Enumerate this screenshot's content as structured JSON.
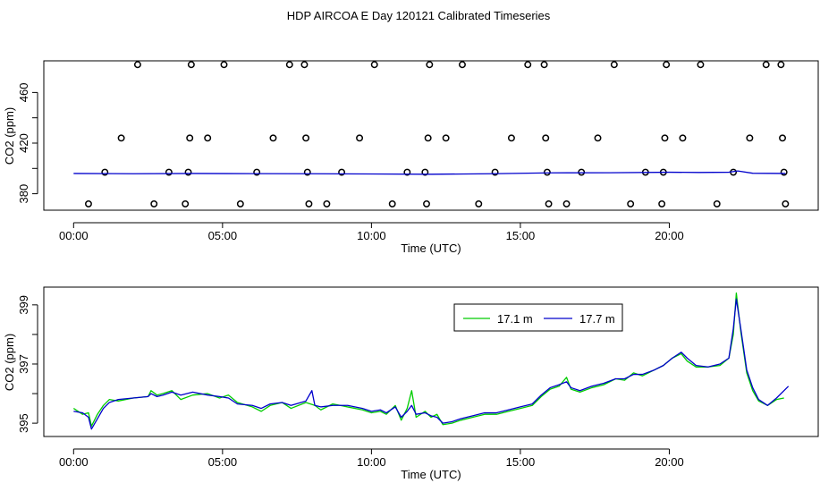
{
  "title": "HDP AIRCOA E  Day 120121  Calibrated Timeseries",
  "chart_data": [
    {
      "type": "scatter",
      "xlabel": "Time (UTC)",
      "ylabel": "CO2 (ppm)",
      "xlim": [
        -1,
        25
      ],
      "ylim": [
        367,
        485
      ],
      "xticks": [
        0,
        5,
        10,
        15,
        20
      ],
      "xtick_labels": [
        "00:00",
        "05:00",
        "10:00",
        "15:00",
        "20:00"
      ],
      "yticks": [
        380,
        420,
        460
      ],
      "ytick_labels": [
        "380",
        "420",
        "460"
      ],
      "grid": false,
      "points": [
        {
          "x": 0.5,
          "y": 372
        },
        {
          "x": 1.05,
          "y": 397
        },
        {
          "x": 1.6,
          "y": 424
        },
        {
          "x": 2.15,
          "y": 482
        },
        {
          "x": 2.7,
          "y": 372
        },
        {
          "x": 3.2,
          "y": 397
        },
        {
          "x": 3.75,
          "y": 372
        },
        {
          "x": 3.85,
          "y": 397
        },
        {
          "x": 3.9,
          "y": 424
        },
        {
          "x": 3.95,
          "y": 482
        },
        {
          "x": 4.5,
          "y": 424
        },
        {
          "x": 5.05,
          "y": 482
        },
        {
          "x": 5.6,
          "y": 372
        },
        {
          "x": 6.15,
          "y": 397
        },
        {
          "x": 6.7,
          "y": 424
        },
        {
          "x": 7.25,
          "y": 482
        },
        {
          "x": 7.75,
          "y": 482
        },
        {
          "x": 7.8,
          "y": 424
        },
        {
          "x": 7.85,
          "y": 397
        },
        {
          "x": 7.9,
          "y": 372
        },
        {
          "x": 8.5,
          "y": 372
        },
        {
          "x": 9.0,
          "y": 397
        },
        {
          "x": 9.6,
          "y": 424
        },
        {
          "x": 10.1,
          "y": 482
        },
        {
          "x": 10.7,
          "y": 372
        },
        {
          "x": 11.2,
          "y": 397
        },
        {
          "x": 11.8,
          "y": 397
        },
        {
          "x": 11.85,
          "y": 372
        },
        {
          "x": 11.9,
          "y": 424
        },
        {
          "x": 11.95,
          "y": 482
        },
        {
          "x": 12.5,
          "y": 424
        },
        {
          "x": 13.05,
          "y": 482
        },
        {
          "x": 13.6,
          "y": 372
        },
        {
          "x": 14.15,
          "y": 397
        },
        {
          "x": 14.7,
          "y": 424
        },
        {
          "x": 15.25,
          "y": 482
        },
        {
          "x": 15.8,
          "y": 482
        },
        {
          "x": 15.85,
          "y": 424
        },
        {
          "x": 15.9,
          "y": 397
        },
        {
          "x": 15.95,
          "y": 372
        },
        {
          "x": 16.55,
          "y": 372
        },
        {
          "x": 17.05,
          "y": 397
        },
        {
          "x": 17.6,
          "y": 424
        },
        {
          "x": 18.15,
          "y": 482
        },
        {
          "x": 18.7,
          "y": 372
        },
        {
          "x": 19.2,
          "y": 397
        },
        {
          "x": 19.75,
          "y": 372
        },
        {
          "x": 19.8,
          "y": 397
        },
        {
          "x": 19.85,
          "y": 424
        },
        {
          "x": 19.9,
          "y": 482
        },
        {
          "x": 20.45,
          "y": 424
        },
        {
          "x": 21.05,
          "y": 482
        },
        {
          "x": 21.6,
          "y": 372
        },
        {
          "x": 22.15,
          "y": 397
        },
        {
          "x": 22.7,
          "y": 424
        },
        {
          "x": 23.25,
          "y": 482
        },
        {
          "x": 23.75,
          "y": 482
        },
        {
          "x": 23.8,
          "y": 424
        },
        {
          "x": 23.85,
          "y": 397
        },
        {
          "x": 23.9,
          "y": 372
        }
      ],
      "series": [
        {
          "color": "#0000cc",
          "points": [
            [
              0,
              396
            ],
            [
              2,
              395.8
            ],
            [
              4,
              396
            ],
            [
              6,
              395.9
            ],
            [
              8,
              395.8
            ],
            [
              10,
              395.6
            ],
            [
              12,
              395.4
            ],
            [
              14,
              395.8
            ],
            [
              16,
              396.5
            ],
            [
              18,
              396.6
            ],
            [
              20,
              397
            ],
            [
              21,
              396.8
            ],
            [
              22,
              397
            ],
            [
              22.3,
              398
            ],
            [
              22.8,
              396.2
            ],
            [
              23.9,
              396
            ]
          ]
        }
      ]
    },
    {
      "type": "line",
      "xlabel": "Time (UTC)",
      "ylabel": "CO2 (ppm)",
      "xlim": [
        -1,
        25
      ],
      "ylim": [
        394.55,
        399.6
      ],
      "xticks": [
        0,
        5,
        10,
        15,
        20
      ],
      "xtick_labels": [
        "00:00",
        "05:00",
        "10:00",
        "15:00",
        "20:00"
      ],
      "yticks": [
        395,
        397,
        399
      ],
      "ytick_labels": [
        "395",
        "397",
        "399"
      ],
      "grid": false,
      "legend": "top-center",
      "series": [
        {
          "name": "17.1 m",
          "color": "#00cc00",
          "points": [
            [
              0,
              395.5
            ],
            [
              0.3,
              395.3
            ],
            [
              0.5,
              395.35
            ],
            [
              0.6,
              394.9
            ],
            [
              0.8,
              395.3
            ],
            [
              1.0,
              395.6
            ],
            [
              1.2,
              395.8
            ],
            [
              1.5,
              395.75
            ],
            [
              2.0,
              395.85
            ],
            [
              2.5,
              395.9
            ],
            [
              2.6,
              396.1
            ],
            [
              2.8,
              395.95
            ],
            [
              3.0,
              396.0
            ],
            [
              3.3,
              396.1
            ],
            [
              3.6,
              395.8
            ],
            [
              4.0,
              395.95
            ],
            [
              4.5,
              396.0
            ],
            [
              4.9,
              395.85
            ],
            [
              5.2,
              395.95
            ],
            [
              5.5,
              395.7
            ],
            [
              6.0,
              395.55
            ],
            [
              6.3,
              395.4
            ],
            [
              6.6,
              395.6
            ],
            [
              7.0,
              395.7
            ],
            [
              7.3,
              395.5
            ],
            [
              7.8,
              395.7
            ],
            [
              8.1,
              395.6
            ],
            [
              8.3,
              395.45
            ],
            [
              8.7,
              395.65
            ],
            [
              9.2,
              395.55
            ],
            [
              9.7,
              395.45
            ],
            [
              10.0,
              395.35
            ],
            [
              10.3,
              395.4
            ],
            [
              10.5,
              395.3
            ],
            [
              10.8,
              395.6
            ],
            [
              11.0,
              395.1
            ],
            [
              11.2,
              395.5
            ],
            [
              11.35,
              396.1
            ],
            [
              11.5,
              395.2
            ],
            [
              11.8,
              395.4
            ],
            [
              12.0,
              395.2
            ],
            [
              12.2,
              395.3
            ],
            [
              12.4,
              394.95
            ],
            [
              12.7,
              395.0
            ],
            [
              13.0,
              395.1
            ],
            [
              13.4,
              395.2
            ],
            [
              13.8,
              395.3
            ],
            [
              14.2,
              395.3
            ],
            [
              14.6,
              395.4
            ],
            [
              15.0,
              395.5
            ],
            [
              15.4,
              395.6
            ],
            [
              15.7,
              395.9
            ],
            [
              16.0,
              396.15
            ],
            [
              16.3,
              396.25
            ],
            [
              16.55,
              396.55
            ],
            [
              16.7,
              396.15
            ],
            [
              17.0,
              396.05
            ],
            [
              17.4,
              396.2
            ],
            [
              17.8,
              396.3
            ],
            [
              18.2,
              396.5
            ],
            [
              18.5,
              396.45
            ],
            [
              18.8,
              396.7
            ],
            [
              19.1,
              396.6
            ],
            [
              19.5,
              396.8
            ],
            [
              19.8,
              396.95
            ],
            [
              20.1,
              397.2
            ],
            [
              20.4,
              397.35
            ],
            [
              20.6,
              397.1
            ],
            [
              20.9,
              396.9
            ],
            [
              21.3,
              396.9
            ],
            [
              21.7,
              396.95
            ],
            [
              22.0,
              397.2
            ],
            [
              22.15,
              398.0
            ],
            [
              22.25,
              399.4
            ],
            [
              22.4,
              398.1
            ],
            [
              22.6,
              396.7
            ],
            [
              22.8,
              396.1
            ],
            [
              23.0,
              395.75
            ],
            [
              23.3,
              395.6
            ],
            [
              23.6,
              395.8
            ],
            [
              23.85,
              395.85
            ]
          ]
        },
        {
          "name": "17.7 m",
          "color": "#0000cc",
          "points": [
            [
              0,
              395.4
            ],
            [
              0.3,
              395.35
            ],
            [
              0.5,
              395.2
            ],
            [
              0.6,
              394.8
            ],
            [
              0.8,
              395.15
            ],
            [
              1.0,
              395.5
            ],
            [
              1.2,
              395.7
            ],
            [
              1.5,
              395.8
            ],
            [
              2.0,
              395.85
            ],
            [
              2.5,
              395.9
            ],
            [
              2.6,
              396.0
            ],
            [
              2.8,
              395.9
            ],
            [
              3.0,
              395.95
            ],
            [
              3.3,
              396.05
            ],
            [
              3.6,
              395.95
            ],
            [
              4.0,
              396.05
            ],
            [
              4.5,
              395.95
            ],
            [
              4.9,
              395.9
            ],
            [
              5.2,
              395.85
            ],
            [
              5.5,
              395.65
            ],
            [
              6.0,
              395.6
            ],
            [
              6.3,
              395.5
            ],
            [
              6.6,
              395.65
            ],
            [
              7.0,
              395.7
            ],
            [
              7.3,
              395.6
            ],
            [
              7.8,
              395.75
            ],
            [
              8.0,
              396.1
            ],
            [
              8.1,
              395.6
            ],
            [
              8.3,
              395.55
            ],
            [
              8.7,
              395.6
            ],
            [
              9.2,
              395.6
            ],
            [
              9.7,
              395.5
            ],
            [
              10.0,
              395.4
            ],
            [
              10.3,
              395.45
            ],
            [
              10.5,
              395.35
            ],
            [
              10.8,
              395.55
            ],
            [
              11.0,
              395.2
            ],
            [
              11.2,
              395.4
            ],
            [
              11.35,
              395.6
            ],
            [
              11.5,
              395.3
            ],
            [
              11.8,
              395.35
            ],
            [
              12.0,
              395.25
            ],
            [
              12.2,
              395.2
            ],
            [
              12.4,
              395.0
            ],
            [
              12.7,
              395.05
            ],
            [
              13.0,
              395.15
            ],
            [
              13.4,
              395.25
            ],
            [
              13.8,
              395.35
            ],
            [
              14.2,
              395.35
            ],
            [
              14.6,
              395.45
            ],
            [
              15.0,
              395.55
            ],
            [
              15.4,
              395.65
            ],
            [
              15.7,
              395.95
            ],
            [
              16.0,
              396.2
            ],
            [
              16.3,
              396.3
            ],
            [
              16.55,
              396.4
            ],
            [
              16.7,
              396.2
            ],
            [
              17.0,
              396.1
            ],
            [
              17.4,
              396.25
            ],
            [
              17.8,
              396.35
            ],
            [
              18.2,
              396.5
            ],
            [
              18.5,
              396.5
            ],
            [
              18.8,
              396.65
            ],
            [
              19.1,
              396.65
            ],
            [
              19.5,
              396.8
            ],
            [
              19.8,
              396.95
            ],
            [
              20.1,
              397.2
            ],
            [
              20.4,
              397.4
            ],
            [
              20.6,
              397.2
            ],
            [
              20.9,
              396.95
            ],
            [
              21.3,
              396.9
            ],
            [
              21.7,
              397.0
            ],
            [
              22.0,
              397.2
            ],
            [
              22.15,
              398.2
            ],
            [
              22.25,
              399.2
            ],
            [
              22.4,
              398.2
            ],
            [
              22.6,
              396.8
            ],
            [
              22.8,
              396.2
            ],
            [
              23.0,
              395.8
            ],
            [
              23.3,
              395.6
            ],
            [
              23.6,
              395.85
            ],
            [
              24.0,
              396.25
            ]
          ]
        }
      ]
    }
  ]
}
